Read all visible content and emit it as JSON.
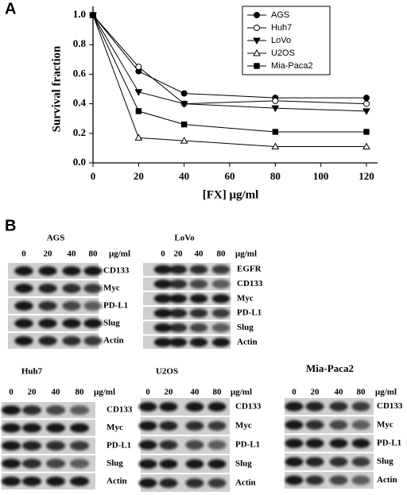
{
  "chart_data": {
    "type": "line",
    "panel_label": "A",
    "x_label": "[FX] μg/ml",
    "y_label": "Survival fraction",
    "x": [
      0,
      20,
      40,
      80,
      120
    ],
    "xlim": [
      0,
      120
    ],
    "xticks": [
      0,
      20,
      40,
      60,
      80,
      100,
      120
    ],
    "ylim": [
      0,
      1.0
    ],
    "yticks": [
      {
        "value": 0,
        "label": "0.0"
      },
      {
        "value": 0.2,
        "label": "0.2"
      },
      {
        "value": 0.4,
        "label": "0.4"
      },
      {
        "value": 0.6,
        "label": "0.6"
      },
      {
        "value": 0.8,
        "label": "0.8"
      },
      {
        "value": 1.0,
        "label": "1.0"
      }
    ],
    "legend": "upper right",
    "series": [
      {
        "name": "AGS",
        "color": "#000000",
        "marker": "circle-filled",
        "values": [
          1.0,
          0.62,
          0.47,
          0.44,
          0.44
        ]
      },
      {
        "name": "Huh7",
        "color": "#000000",
        "marker": "circle-open",
        "values": [
          1.0,
          0.65,
          0.4,
          0.42,
          0.4
        ]
      },
      {
        "name": "LoVo",
        "color": "#000000",
        "marker": "triangle-down-filled",
        "values": [
          1.0,
          0.48,
          0.4,
          0.37,
          0.35
        ]
      },
      {
        "name": "U2OS",
        "color": "#000000",
        "marker": "triangle-up-open",
        "values": [
          1.0,
          0.17,
          0.15,
          0.11,
          0.11
        ]
      },
      {
        "name": "Mia-Paca2",
        "color": "#000000",
        "marker": "square-filled",
        "values": [
          1.0,
          0.35,
          0.26,
          0.21,
          0.21
        ]
      }
    ]
  },
  "panel_b": {
    "label": "B",
    "blots": [
      {
        "title": "AGS",
        "lanes": [
          "0",
          "20",
          "40",
          "80"
        ],
        "unit": "μg/ml",
        "rows": [
          "CD133",
          "Myc",
          "PD-L1",
          "Slug",
          "Actin"
        ]
      },
      {
        "title": "LoVo",
        "lanes": [
          "0",
          "20",
          "40",
          "80"
        ],
        "unit": "μg/ml",
        "rows": [
          "EGFR",
          "CD133",
          "Myc",
          "PD-L1",
          "Slug",
          "Actin"
        ]
      },
      {
        "title": "Huh7",
        "lanes": [
          "0",
          "20",
          "40",
          "80"
        ],
        "unit": "μg/ml",
        "rows": [
          "CD133",
          "Myc",
          "PD-L1",
          "Slug",
          "Actin"
        ]
      },
      {
        "title": "U2OS",
        "lanes": [
          "0",
          "20",
          "40",
          "80"
        ],
        "unit": "μg/ml",
        "rows": [
          "CD133",
          "Myc",
          "PD-L1",
          "Slug",
          "Actin"
        ]
      },
      {
        "title": "Mia-Paca2",
        "lanes": [
          "0",
          "20",
          "40",
          "80"
        ],
        "unit": "μg/ml",
        "rows": [
          "CD133",
          "Myc",
          "PD-L1",
          "Slug",
          "Actin"
        ]
      }
    ]
  }
}
